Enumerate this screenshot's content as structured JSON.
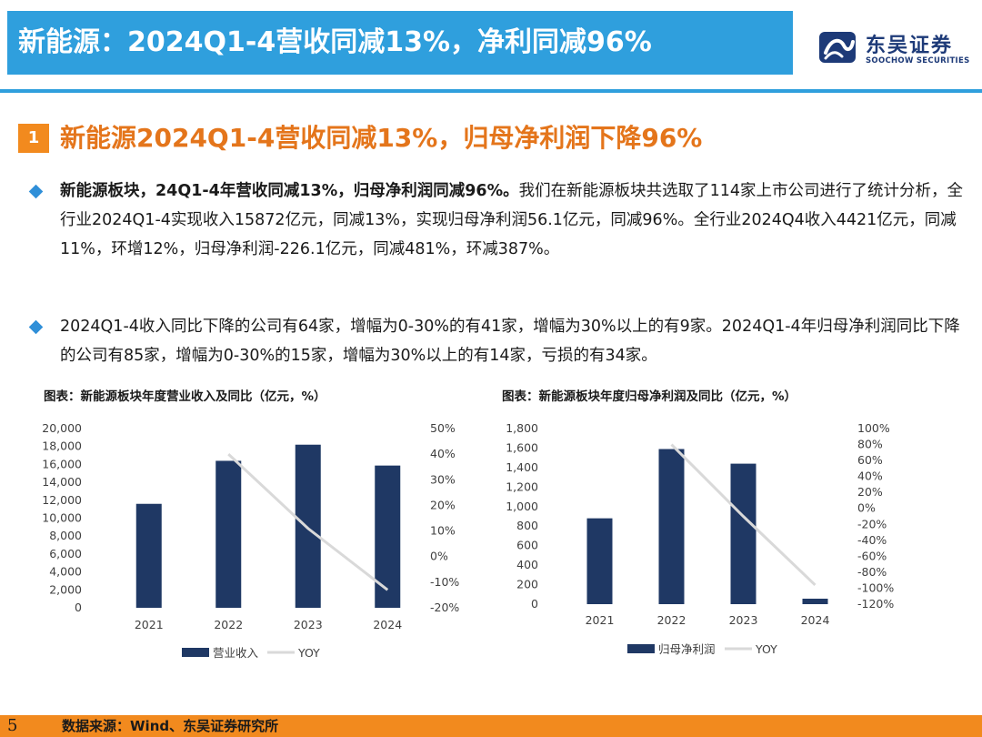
{
  "header": {
    "title": "新能源：2024Q1-4营收同减13%，净利同减96%",
    "logo_cn": "东吴证券",
    "logo_en": "SOOCHOW SECURITIES"
  },
  "section": {
    "number": "1",
    "title": "新能源2024Q1-4营收同减13%，归母净利润下降96%"
  },
  "bullets": [
    {
      "bold": "新能源板块，24Q1-4年营收同减13%，归母净利润同减96%。",
      "text": "我们在新能源板块共选取了114家上市公司进行了统计分析，全行业2024Q1-4实现收入15872亿元，同减13%，实现归母净利润56.1亿元，同减96%。全行业2024Q4收入4421亿元，同减11%，环增12%，归母净利润-226.1亿元，同减481%，环减387%。"
    },
    {
      "bold": "",
      "text": "2024Q1-4收入同比下降的公司有64家，增幅为0-30%的有41家，增幅为30%以上的有9家。2024Q1-4年归母净利润同比下降的公司有85家，增幅为0-30%的15家，增幅为30%以上的有14家，亏损的有34家。"
    }
  ],
  "chart_titles": [
    "图表：新能源板块年度营业收入及同比（亿元，%）",
    "图表：新能源板块年度归母净利润及同比（亿元，%）"
  ],
  "chart_data": [
    {
      "type": "bar",
      "categories": [
        "2021",
        "2022",
        "2023",
        "2024"
      ],
      "series": [
        {
          "name": "营业收入",
          "kind": "bar",
          "axis": "left",
          "values": [
            11600,
            16400,
            18200,
            15872
          ]
        },
        {
          "name": "YOY",
          "kind": "line",
          "axis": "right",
          "values": [
            null,
            40,
            11,
            -13
          ]
        }
      ],
      "ylim": [
        0,
        20000
      ],
      "yticks": [
        "20,000",
        "18,000",
        "16,000",
        "14,000",
        "12,000",
        "10,000",
        "8,000",
        "6,000",
        "4,000",
        "2,000",
        "0"
      ],
      "y2lim": [
        -20,
        50
      ],
      "y2ticks": [
        "50%",
        "40%",
        "30%",
        "20%",
        "10%",
        "0%",
        "-10%",
        "-20%"
      ],
      "legend_position": "bottom",
      "colors": {
        "bar": "#1f3864",
        "line": "#d9d9d9"
      }
    },
    {
      "type": "bar",
      "categories": [
        "2021",
        "2022",
        "2023",
        "2024"
      ],
      "series": [
        {
          "name": "归母净利润",
          "kind": "bar",
          "axis": "left",
          "values": [
            880,
            1590,
            1440,
            56.1
          ]
        },
        {
          "name": "YOY",
          "kind": "line",
          "axis": "right",
          "values": [
            null,
            80,
            -10,
            -96
          ]
        }
      ],
      "ylim": [
        0,
        1800
      ],
      "yticks": [
        "1,800",
        "1,600",
        "1,400",
        "1,200",
        "1,000",
        "800",
        "600",
        "400",
        "200",
        "0"
      ],
      "y2lim": [
        -120,
        100
      ],
      "y2ticks": [
        "100%",
        "80%",
        "60%",
        "40%",
        "20%",
        "0%",
        "-20%",
        "-40%",
        "-60%",
        "-80%",
        "-100%",
        "-120%"
      ],
      "legend_position": "bottom",
      "colors": {
        "bar": "#1f3864",
        "line": "#d9d9d9"
      }
    }
  ],
  "footer": {
    "page": "5",
    "source": "数据来源：Wind、东吴证券研究所"
  }
}
